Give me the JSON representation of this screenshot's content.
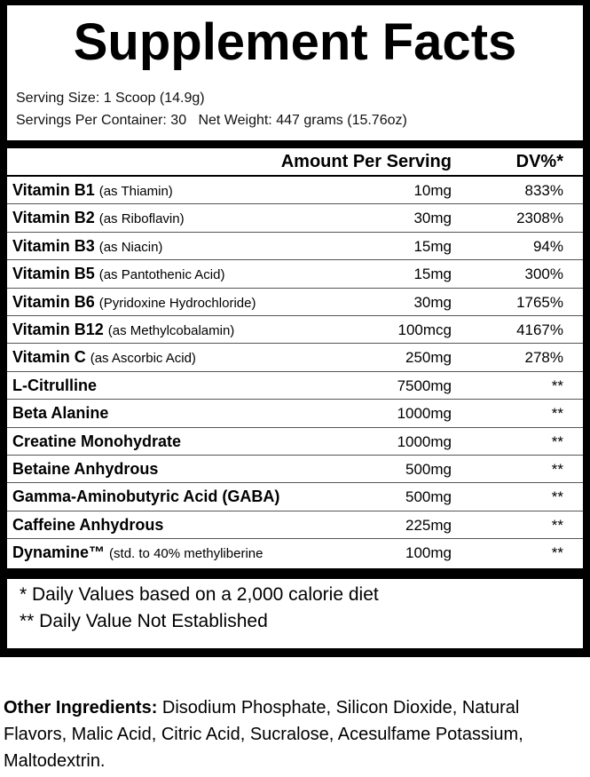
{
  "title": "Supplement Facts",
  "serving_size": "Serving Size: 1 Scoop (14.9g)",
  "servings_per_container": "Servings Per Container: 30",
  "net_weight": "Net Weight: 447 grams (15.76oz)",
  "header": {
    "amount": "Amount Per Serving",
    "dv": "DV%*"
  },
  "rows": [
    {
      "name": "Vitamin B1",
      "note": "(as Thiamin)",
      "amount": "10mg",
      "dv": "833%"
    },
    {
      "name": "Vitamin B2",
      "note": "(as Riboflavin)",
      "amount": "30mg",
      "dv": "2308%"
    },
    {
      "name": "Vitamin B3",
      "note": "(as Niacin)",
      "amount": "15mg",
      "dv": "94%"
    },
    {
      "name": "Vitamin B5",
      "note": "(as Pantothenic Acid)",
      "amount": "15mg",
      "dv": "300%"
    },
    {
      "name": "Vitamin B6",
      "note": "(Pyridoxine Hydrochloride)",
      "amount": "30mg",
      "dv": "1765%"
    },
    {
      "name": "Vitamin B12",
      "note": "(as Methylcobalamin)",
      "amount": "100mcg",
      "dv": "4167%"
    },
    {
      "name": "Vitamin C",
      "note": "(as Ascorbic Acid)",
      "amount": "250mg",
      "dv": "278%"
    },
    {
      "name": "L-Citrulline",
      "note": "",
      "amount": "7500mg",
      "dv": "**"
    },
    {
      "name": "Beta Alanine",
      "note": "",
      "amount": "1000mg",
      "dv": "**"
    },
    {
      "name": "Creatine Monohydrate",
      "note": "",
      "amount": "1000mg",
      "dv": "**"
    },
    {
      "name": "Betaine Anhydrous",
      "note": "",
      "amount": "500mg",
      "dv": "**"
    },
    {
      "name": "Gamma-Aminobutyric Acid (GABA)",
      "note": "",
      "amount": "500mg",
      "dv": "**"
    },
    {
      "name": "Caffeine Anhydrous",
      "note": "",
      "amount": "225mg",
      "dv": "**"
    },
    {
      "name": "Dynamine™",
      "note": "(std. to 40% methyliberine",
      "amount": "100mg",
      "dv": "**"
    }
  ],
  "footnotes": [
    "* Daily Values based on a 2,000 calorie diet",
    "** Daily Value Not Established"
  ],
  "other_ingredients": {
    "label": "Other Ingredients:",
    "text": " Disodium Phosphate, Silicon Dioxide, Natural Flavors, Malic Acid, Citric Acid, Sucralose, Acesulfame Potassium, Maltodextrin."
  }
}
